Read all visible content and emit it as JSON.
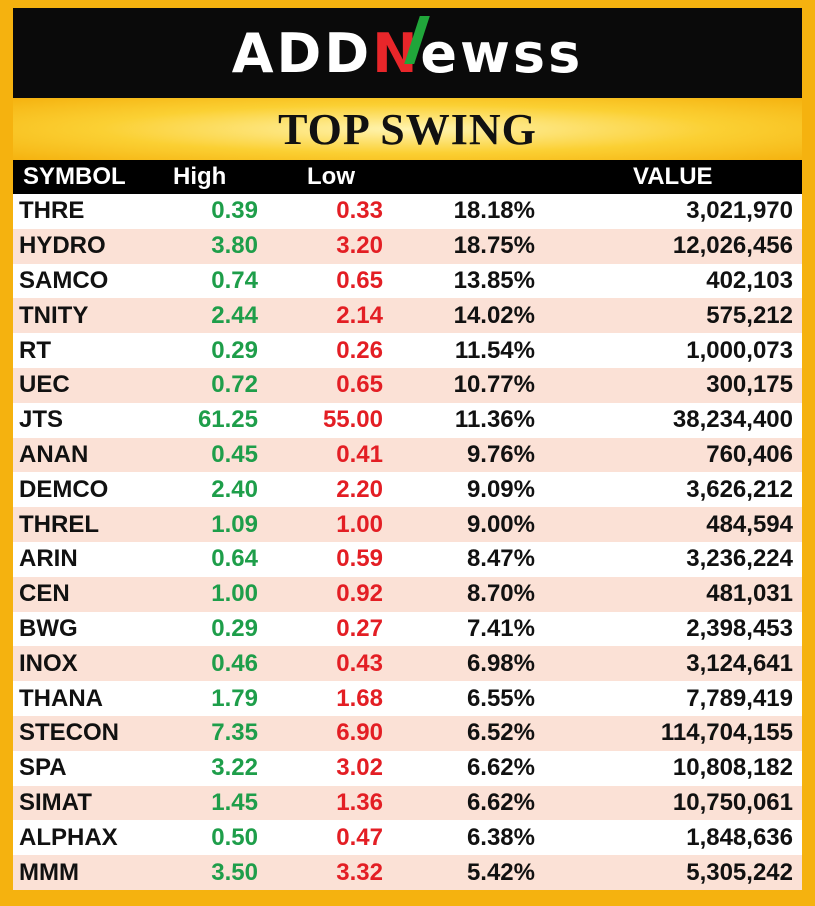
{
  "logo": {
    "part1": "ADD",
    "part2": "N",
    "part3": "ewss"
  },
  "title": "TOP SWING",
  "headers": {
    "symbol": "SYMBOL",
    "high": "High",
    "low": "Low",
    "pct": "",
    "value": "VALUE"
  },
  "rows": [
    {
      "symbol": "THRE",
      "high": "0.39",
      "low": "0.33",
      "pct": "18.18%",
      "value": "3,021,970"
    },
    {
      "symbol": "HYDRO",
      "high": "3.80",
      "low": "3.20",
      "pct": "18.75%",
      "value": "12,026,456"
    },
    {
      "symbol": "SAMCO",
      "high": "0.74",
      "low": "0.65",
      "pct": "13.85%",
      "value": "402,103"
    },
    {
      "symbol": "TNITY",
      "high": "2.44",
      "low": "2.14",
      "pct": "14.02%",
      "value": "575,212"
    },
    {
      "symbol": "RT",
      "high": "0.29",
      "low": "0.26",
      "pct": "11.54%",
      "value": "1,000,073"
    },
    {
      "symbol": "UEC",
      "high": "0.72",
      "low": "0.65",
      "pct": "10.77%",
      "value": "300,175"
    },
    {
      "symbol": "JTS",
      "high": "61.25",
      "low": "55.00",
      "pct": "11.36%",
      "value": "38,234,400"
    },
    {
      "symbol": "ANAN",
      "high": "0.45",
      "low": "0.41",
      "pct": "9.76%",
      "value": "760,406"
    },
    {
      "symbol": "DEMCO",
      "high": "2.40",
      "low": "2.20",
      "pct": "9.09%",
      "value": "3,626,212"
    },
    {
      "symbol": "THREL",
      "high": "1.09",
      "low": "1.00",
      "pct": "9.00%",
      "value": "484,594"
    },
    {
      "symbol": "ARIN",
      "high": "0.64",
      "low": "0.59",
      "pct": "8.47%",
      "value": "3,236,224"
    },
    {
      "symbol": "CEN",
      "high": "1.00",
      "low": "0.92",
      "pct": "8.70%",
      "value": "481,031"
    },
    {
      "symbol": "BWG",
      "high": "0.29",
      "low": "0.27",
      "pct": "7.41%",
      "value": "2,398,453"
    },
    {
      "symbol": "INOX",
      "high": "0.46",
      "low": "0.43",
      "pct": "6.98%",
      "value": "3,124,641"
    },
    {
      "symbol": "THANA",
      "high": "1.79",
      "low": "1.68",
      "pct": "6.55%",
      "value": "7,789,419"
    },
    {
      "symbol": "STECON",
      "high": "7.35",
      "low": "6.90",
      "pct": "6.52%",
      "value": "114,704,155"
    },
    {
      "symbol": "SPA",
      "high": "3.22",
      "low": "3.02",
      "pct": "6.62%",
      "value": "10,808,182"
    },
    {
      "symbol": "SIMAT",
      "high": "1.45",
      "low": "1.36",
      "pct": "6.62%",
      "value": "10,750,061"
    },
    {
      "symbol": "ALPHAX",
      "high": "0.50",
      "low": "0.47",
      "pct": "6.38%",
      "value": "1,848,636"
    },
    {
      "symbol": "MMM",
      "high": "3.50",
      "low": "3.32",
      "pct": "5.42%",
      "value": "5,305,242"
    }
  ],
  "colors": {
    "high": "#1e9e4a",
    "low": "#e31e24",
    "frame": "#f5b20f"
  }
}
